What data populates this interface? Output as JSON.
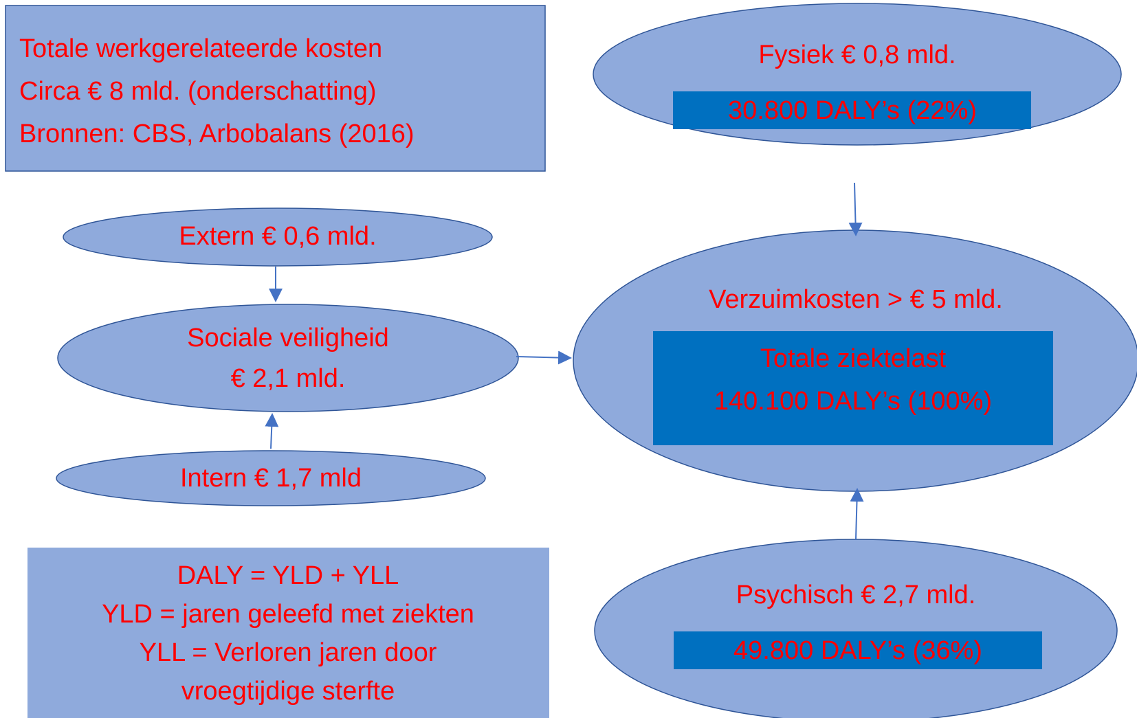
{
  "sources_box": {
    "lines": [
      "Totale werkgerelateerde kosten",
      "Circa € 8 mld. (onderschatting)",
      "Bronnen: CBS, Arbobalans (2016)"
    ]
  },
  "nodes": [
    {
      "label": "Fysiek € 0,8 mld.",
      "detail": [
        "30.800 DALY’s (22%)"
      ]
    },
    {
      "label": "Extern € 0,6  mld."
    },
    {
      "label": [
        "Sociale veiligheid",
        "€ 2,1 mld."
      ]
    },
    {
      "label": "Intern € 1,7 mld"
    },
    {
      "label": "Verzuimkosten > € 5 mld.",
      "detail": [
        "Totale ziektelast",
        "140.100 DALY’s (100%)"
      ]
    },
    {
      "label": "Psychisch € 2,7 mld.",
      "detail": [
        "49.800 DALY’s (36%)"
      ]
    }
  ],
  "legend_box": {
    "lines": [
      "DALY = YLD + YLL",
      "YLD = jaren geleefd met ziekten",
      "YLL = Verloren jaren door",
      "vroegtijdige sterfte"
    ]
  }
}
